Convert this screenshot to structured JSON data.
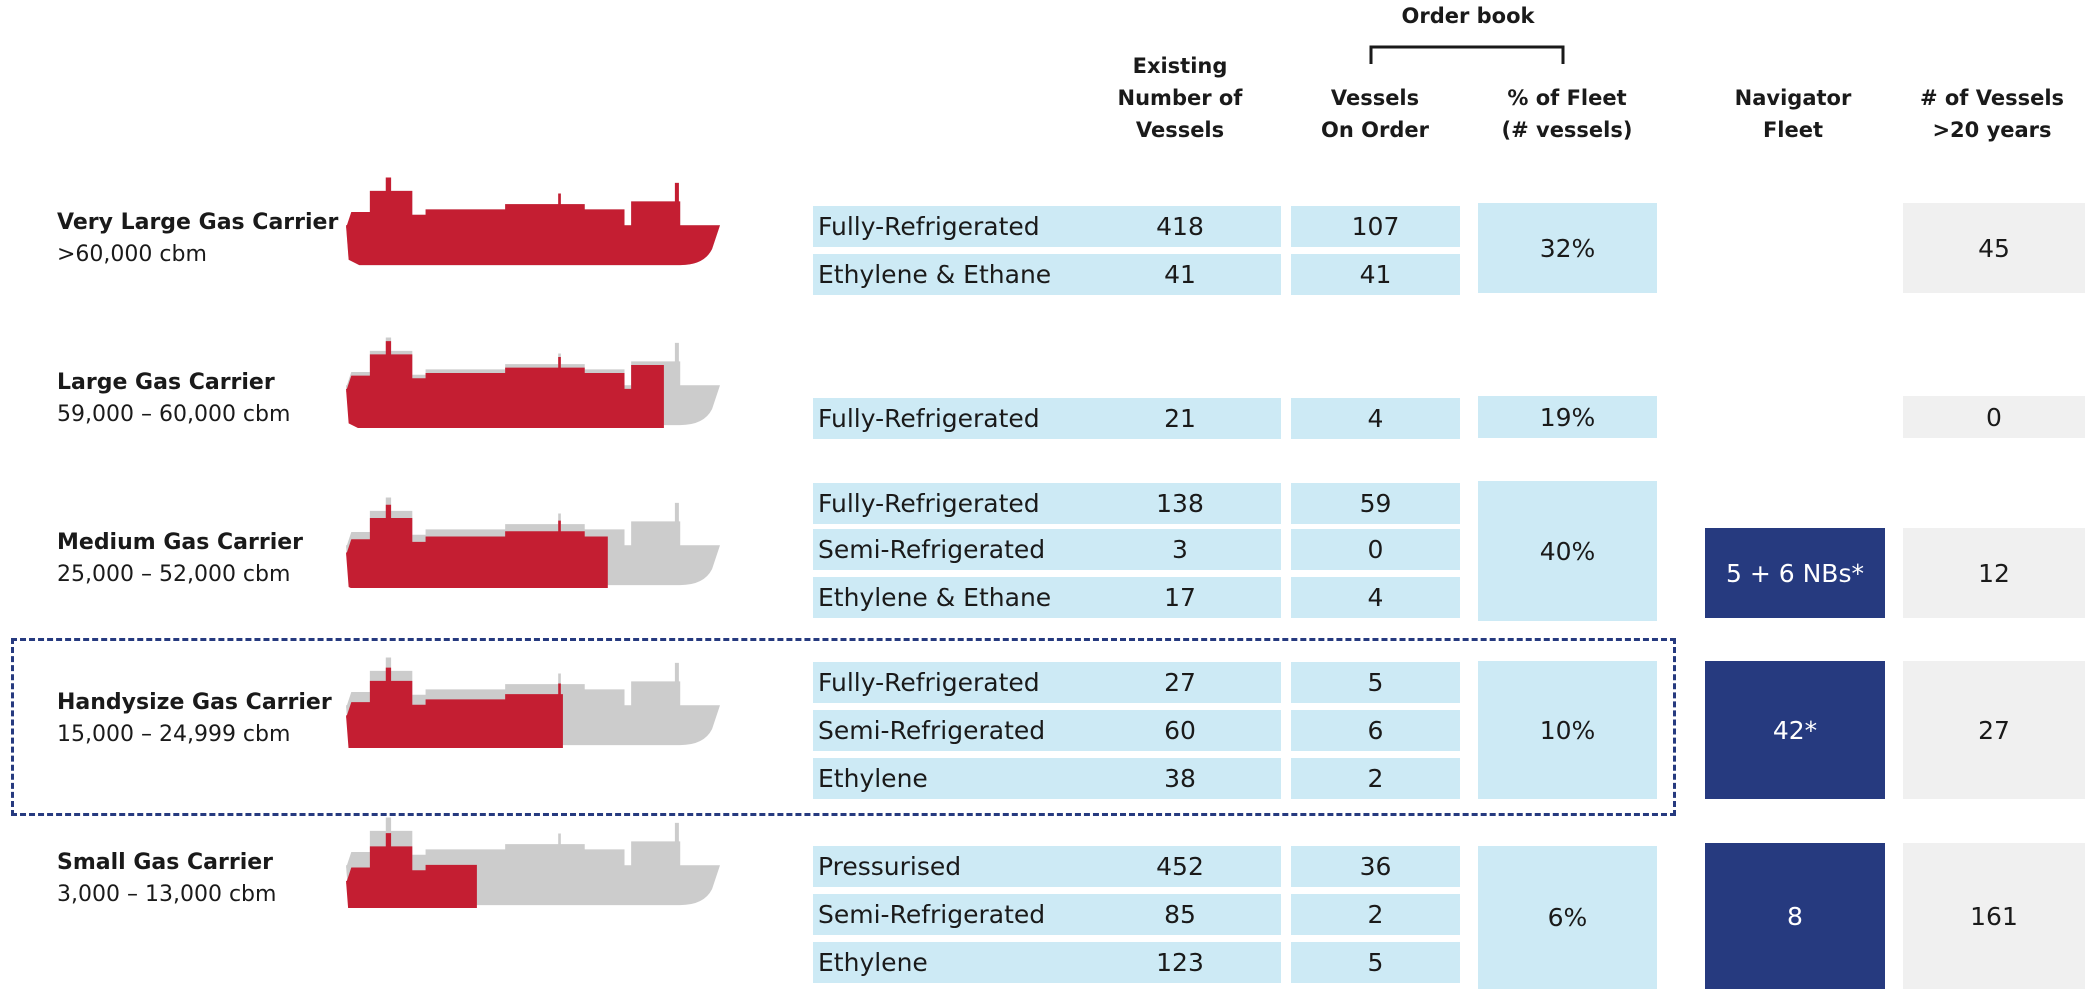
{
  "header": {
    "order_book": "Order book",
    "columns": [
      [
        "Existing",
        "Number of",
        "Vessels"
      ],
      [
        "Vessels",
        "On Order"
      ],
      [
        "% of Fleet",
        "(# vessels)"
      ],
      [
        "Navigator",
        "Fleet"
      ],
      [
        "# of Vessels",
        ">20 years"
      ]
    ]
  },
  "segments": [
    {
      "name": "Very Large Gas Carrier",
      "size": ">60,000 cbm",
      "rows": [
        {
          "type": "Fully-Refrigerated",
          "existing": "418",
          "on_order": "107"
        },
        {
          "type": "Ethylene & Ethane",
          "existing": "41",
          "on_order": "41"
        }
      ],
      "pct_fleet": "32%",
      "over_20": "45"
    },
    {
      "name": "Large Gas Carrier",
      "size": "59,000 – 60,000 cbm",
      "rows": [
        {
          "type": "Fully-Refrigerated",
          "existing": "21",
          "on_order": "4"
        }
      ],
      "pct_fleet": "19%",
      "over_20": "0"
    },
    {
      "name": "Medium Gas Carrier",
      "size": "25,000 – 52,000 cbm",
      "rows": [
        {
          "type": "Fully-Refrigerated",
          "existing": "138",
          "on_order": "59"
        },
        {
          "type": "Semi-Refrigerated",
          "existing": "3",
          "on_order": "0"
        },
        {
          "type": "Ethylene & Ethane",
          "existing": "17",
          "on_order": "4"
        }
      ],
      "pct_fleet": "40%",
      "navigator": "5 + 6 NBs*",
      "over_20": "12"
    },
    {
      "name": "Handysize Gas Carrier",
      "size": "15,000 – 24,999 cbm",
      "rows": [
        {
          "type": "Fully-Refrigerated",
          "existing": "27",
          "on_order": "5"
        },
        {
          "type": "Semi-Refrigerated",
          "existing": "60",
          "on_order": "6"
        },
        {
          "type": "Ethylene",
          "existing": "38",
          "on_order": "2"
        }
      ],
      "pct_fleet": "10%",
      "navigator": "42*",
      "over_20": "27"
    },
    {
      "name": "Small Gas Carrier",
      "size": "3,000 – 13,000 cbm",
      "rows": [
        {
          "type": "Pressurised",
          "existing": "452",
          "on_order": "36"
        },
        {
          "type": "Semi-Refrigerated",
          "existing": "85",
          "on_order": "2"
        },
        {
          "type": "Ethylene",
          "existing": "123",
          "on_order": "5"
        }
      ],
      "pct_fleet": "6%",
      "navigator": "8",
      "over_20": "161"
    }
  ]
}
